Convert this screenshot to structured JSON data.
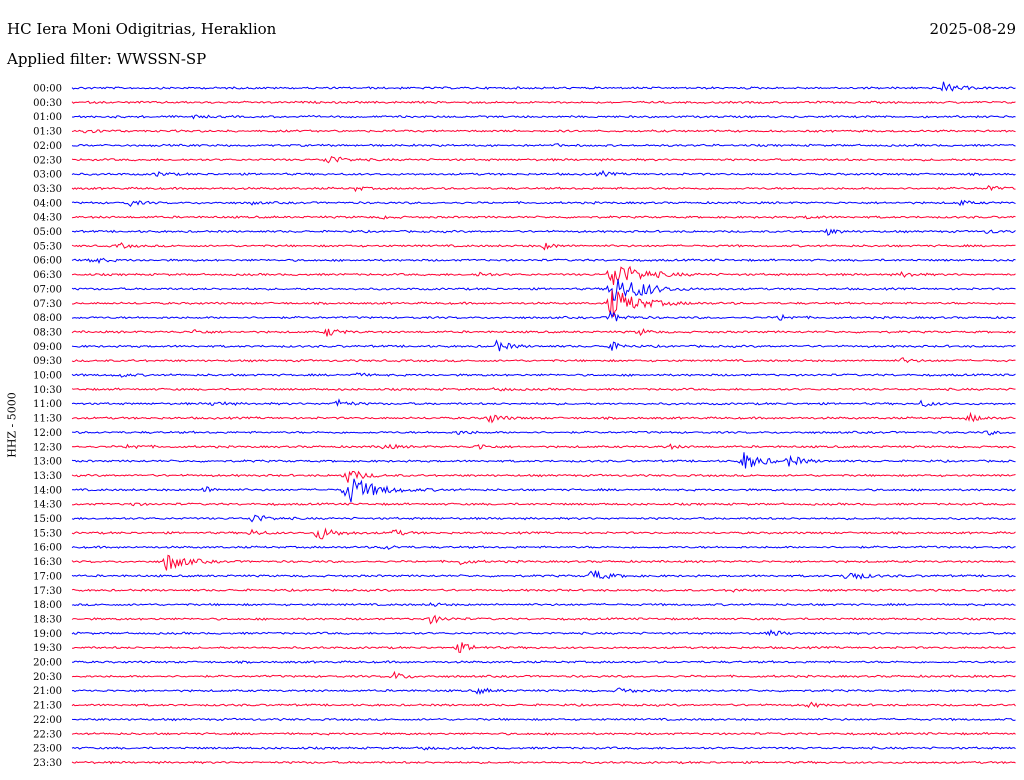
{
  "header": {
    "station": "HC Iera Moni Odigitrias, Heraklion",
    "filter": "Applied filter: WWSSN-SP",
    "date": "2025-08-29"
  },
  "channel": "HHZ - 5000",
  "colors": {
    "even_row": "#0000ff",
    "odd_row": "#ff0033",
    "text": "#000000",
    "background": "#ffffff"
  },
  "chart_data": {
    "type": "helicorder",
    "title": "HC Iera Moni Odigitrias, Heraklion",
    "subtitle": "Applied filter: WWSSN-SP",
    "date": "2025-08-29",
    "ylabel": "HHZ - 5000",
    "row_interval_minutes": 30,
    "row_colors_alternate": [
      "blue",
      "red"
    ],
    "rows": [
      {
        "label": "00:00",
        "events": [
          [
            0.923,
            1.0
          ]
        ]
      },
      {
        "label": "00:30",
        "events": []
      },
      {
        "label": "01:00",
        "events": [
          [
            0.128,
            0.3
          ]
        ]
      },
      {
        "label": "01:30",
        "events": [
          [
            0.014,
            0.6
          ]
        ]
      },
      {
        "label": "02:00",
        "events": [
          [
            0.513,
            0.2
          ]
        ]
      },
      {
        "label": "02:30",
        "events": [
          [
            0.27,
            1.0
          ]
        ]
      },
      {
        "label": "03:00",
        "events": [
          [
            0.09,
            0.5
          ],
          [
            0.56,
            0.5
          ]
        ]
      },
      {
        "label": "03:30",
        "events": [
          [
            0.3,
            0.4
          ],
          [
            0.97,
            0.5
          ]
        ]
      },
      {
        "label": "04:00",
        "events": [
          [
            0.06,
            0.6
          ],
          [
            0.19,
            0.3
          ],
          [
            0.94,
            0.5
          ]
        ]
      },
      {
        "label": "04:30",
        "events": [
          [
            0.33,
            0.3
          ],
          [
            0.78,
            0.4
          ]
        ]
      },
      {
        "label": "05:00",
        "events": [
          [
            0.8,
            0.6
          ],
          [
            0.97,
            0.4
          ]
        ]
      },
      {
        "label": "05:30",
        "events": [
          [
            0.05,
            0.5
          ],
          [
            0.5,
            0.6
          ]
        ]
      },
      {
        "label": "06:00",
        "events": [
          [
            0.02,
            0.7
          ]
        ]
      },
      {
        "label": "06:30",
        "events": [
          [
            0.43,
            0.5
          ],
          [
            0.57,
            3.0
          ],
          [
            0.88,
            0.6
          ]
        ]
      },
      {
        "label": "07:00",
        "events": [
          [
            0.57,
            3.0
          ],
          [
            0.6,
            0.8
          ]
        ]
      },
      {
        "label": "07:30",
        "events": [
          [
            0.57,
            3.0
          ]
        ]
      },
      {
        "label": "08:00",
        "events": [
          [
            0.57,
            1.0
          ],
          [
            0.75,
            0.6
          ]
        ]
      },
      {
        "label": "08:30",
        "events": [
          [
            0.13,
            0.5
          ],
          [
            0.27,
            0.8
          ],
          [
            0.6,
            0.6
          ]
        ]
      },
      {
        "label": "09:00",
        "events": [
          [
            0.45,
            1.0
          ],
          [
            0.57,
            0.8
          ]
        ]
      },
      {
        "label": "09:30",
        "events": [
          [
            0.88,
            0.5
          ]
        ]
      },
      {
        "label": "10:00",
        "events": [
          [
            0.05,
            0.4
          ],
          [
            0.3,
            0.4
          ]
        ]
      },
      {
        "label": "10:30",
        "events": [
          [
            0.45,
            0.4
          ]
        ]
      },
      {
        "label": "11:00",
        "events": [
          [
            0.15,
            0.6
          ],
          [
            0.28,
            0.8
          ],
          [
            0.9,
            0.6
          ]
        ]
      },
      {
        "label": "11:30",
        "events": [
          [
            0.44,
            1.0
          ],
          [
            0.95,
            0.8
          ]
        ]
      },
      {
        "label": "12:00",
        "events": [
          [
            0.41,
            0.5
          ],
          [
            0.97,
            0.4
          ]
        ]
      },
      {
        "label": "12:30",
        "events": [
          [
            0.06,
            0.6
          ],
          [
            0.33,
            0.6
          ],
          [
            0.43,
            0.6
          ],
          [
            0.63,
            0.5
          ]
        ]
      },
      {
        "label": "13:00",
        "events": [
          [
            0.71,
            1.8
          ],
          [
            0.76,
            1.0
          ]
        ]
      },
      {
        "label": "13:30",
        "events": [
          [
            0.29,
            1.4
          ]
        ]
      },
      {
        "label": "14:00",
        "events": [
          [
            0.29,
            3.0
          ],
          [
            0.14,
            0.6
          ]
        ]
      },
      {
        "label": "14:30",
        "events": [
          [
            0.06,
            0.4
          ]
        ]
      },
      {
        "label": "15:00",
        "events": [
          [
            0.19,
            1.0
          ]
        ]
      },
      {
        "label": "15:30",
        "events": [
          [
            0.19,
            0.6
          ],
          [
            0.26,
            1.4
          ],
          [
            0.34,
            0.6
          ]
        ]
      },
      {
        "label": "16:00",
        "events": [
          [
            0.33,
            0.5
          ]
        ]
      },
      {
        "label": "16:30",
        "events": [
          [
            0.1,
            1.8
          ],
          [
            0.41,
            0.6
          ]
        ]
      },
      {
        "label": "17:00",
        "events": [
          [
            0.55,
            1.2
          ],
          [
            0.82,
            1.2
          ]
        ]
      },
      {
        "label": "17:30",
        "events": [
          [
            0.7,
            0.3
          ]
        ]
      },
      {
        "label": "18:00",
        "events": [
          [
            0.38,
            0.4
          ]
        ]
      },
      {
        "label": "18:30",
        "events": [
          [
            0.38,
            0.8
          ]
        ]
      },
      {
        "label": "19:00",
        "events": [
          [
            0.74,
            0.6
          ]
        ]
      },
      {
        "label": "19:30",
        "events": [
          [
            0.41,
            1.0
          ]
        ]
      },
      {
        "label": "20:00",
        "events": []
      },
      {
        "label": "20:30",
        "events": [
          [
            0.34,
            0.8
          ]
        ]
      },
      {
        "label": "21:00",
        "events": [
          [
            0.43,
            0.6
          ],
          [
            0.58,
            0.6
          ]
        ]
      },
      {
        "label": "21:30",
        "events": [
          [
            0.78,
            0.5
          ]
        ]
      },
      {
        "label": "22:00",
        "events": []
      },
      {
        "label": "22:30",
        "events": []
      },
      {
        "label": "23:00",
        "events": [
          [
            0.37,
            0.4
          ]
        ]
      },
      {
        "label": "23:30",
        "events": []
      }
    ]
  }
}
